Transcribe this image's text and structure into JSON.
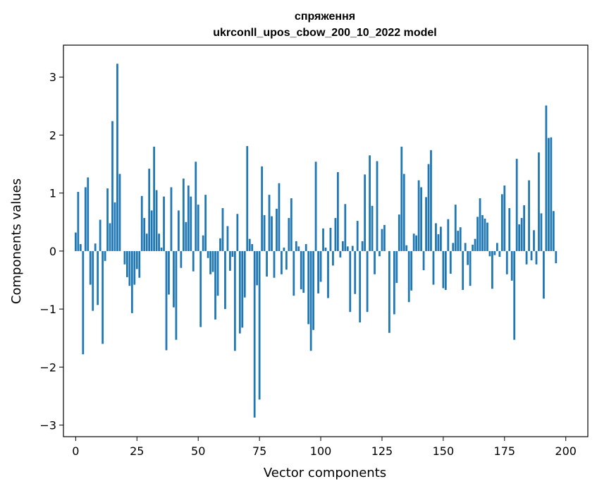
{
  "chart_data": {
    "type": "bar",
    "title": "спряження",
    "subtitle": "ukrconll_upos_cbow_200_10_2022 model",
    "xlabel": "Vector components",
    "ylabel": "Components values",
    "xlim": [
      -5,
      209
    ],
    "ylim": [
      -3.2,
      3.55
    ],
    "xticks": [
      0,
      25,
      50,
      75,
      100,
      125,
      150,
      175,
      200
    ],
    "xtick_labels": [
      "0",
      "25",
      "50",
      "75",
      "100",
      "125",
      "150",
      "175",
      "200"
    ],
    "yticks": [
      -3,
      -2,
      -1,
      0,
      1,
      2,
      3
    ],
    "ytick_labels": [
      "−3",
      "−2",
      "−1",
      "0",
      "1",
      "2",
      "3"
    ],
    "grid": false,
    "bar_color": "#1f77b4",
    "values": [
      0.32,
      1.02,
      0.12,
      -1.78,
      1.1,
      1.27,
      -0.58,
      -1.03,
      0.13,
      -0.93,
      0.54,
      -1.6,
      -0.17,
      1.08,
      0.48,
      2.24,
      0.84,
      3.23,
      1.33,
      0.0,
      -0.23,
      -0.45,
      -0.6,
      -1.07,
      -0.58,
      -0.31,
      -0.46,
      0.95,
      0.57,
      0.3,
      1.42,
      0.7,
      1.8,
      1.05,
      0.3,
      0.06,
      0.94,
      -1.71,
      -0.75,
      1.1,
      -0.97,
      -1.53,
      0.7,
      -0.29,
      1.25,
      0.5,
      1.13,
      0.94,
      -0.35,
      1.54,
      0.8,
      -1.31,
      0.27,
      0.97,
      -0.12,
      -0.4,
      -0.36,
      -1.18,
      -0.77,
      0.22,
      0.74,
      -1.0,
      0.43,
      -0.34,
      -0.1,
      -1.72,
      0.64,
      -1.42,
      -1.32,
      -0.8,
      1.81,
      0.21,
      0.12,
      -2.87,
      -0.59,
      -2.56,
      1.46,
      0.62,
      -0.44,
      0.97,
      0.6,
      -0.46,
      0.73,
      1.17,
      -0.4,
      0.06,
      -0.32,
      0.57,
      0.91,
      -0.77,
      0.17,
      0.08,
      -0.66,
      -0.72,
      0.12,
      -1.26,
      -1.72,
      -1.36,
      1.54,
      -0.73,
      -0.53,
      0.39,
      0.06,
      -0.81,
      0.4,
      -0.25,
      0.57,
      1.36,
      -0.11,
      0.17,
      0.81,
      0.08,
      -1.05,
      0.09,
      -0.74,
      0.52,
      -1.23,
      0.17,
      1.32,
      -1.05,
      1.65,
      0.78,
      -0.4,
      1.55,
      -0.09,
      0.38,
      0.45,
      0.0,
      -1.41,
      0.0,
      -1.09,
      -0.55,
      0.63,
      1.8,
      1.33,
      0.1,
      -0.88,
      -0.68,
      0.3,
      0.27,
      1.22,
      1.1,
      -0.33,
      0.93,
      1.5,
      1.74,
      -0.58,
      0.48,
      0.29,
      0.42,
      -0.64,
      -0.67,
      0.55,
      -0.39,
      0.14,
      0.8,
      0.35,
      0.41,
      -0.67,
      0.14,
      -0.24,
      -0.6,
      0.11,
      0.21,
      0.59,
      0.91,
      0.62,
      0.56,
      0.49,
      -0.09,
      -0.65,
      -0.07,
      0.14,
      -0.1,
      0.98,
      1.13,
      -0.4,
      0.74,
      -0.51,
      -1.53,
      1.59,
      0.46,
      0.57,
      0.79,
      -0.23,
      1.22,
      -0.16,
      0.36,
      -0.23,
      1.7,
      0.65,
      -0.82,
      2.51,
      1.95,
      1.96,
      0.69,
      -0.21
    ]
  }
}
